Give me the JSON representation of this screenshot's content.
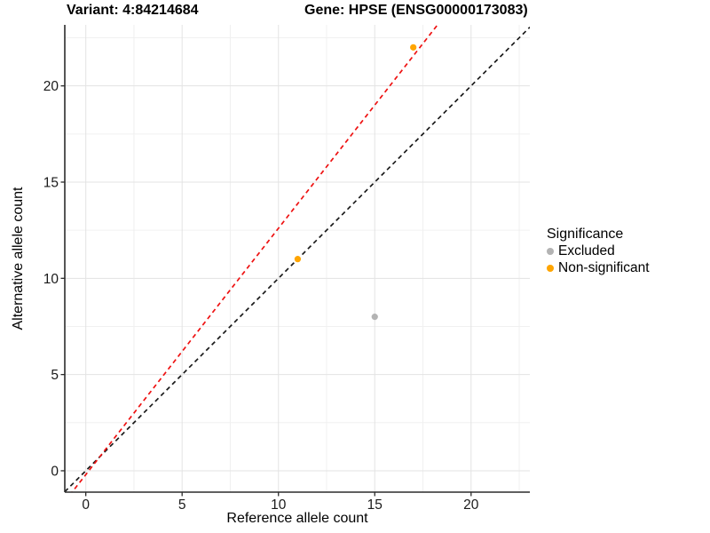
{
  "chart_data": {
    "type": "scatter",
    "titles": {
      "left": "Variant: 4:84214684",
      "right": "Gene: HPSE (ENSG00000173083)"
    },
    "xlabel": "Reference allele count",
    "ylabel": "Alternative allele count",
    "xlim": [
      -1.09,
      23.05
    ],
    "ylim": [
      -1.11,
      23.17
    ],
    "x_ticks": [
      0,
      5,
      10,
      15,
      20
    ],
    "y_ticks": [
      0,
      5,
      10,
      15,
      20
    ],
    "minor_interval": 2.5,
    "grid": "major+minor",
    "grid_major_color": "#E3E3E3",
    "grid_minor_color": "#F0F0F0",
    "axis_color": "#2B2B2B",
    "tick_label_color": "#1A1A1A",
    "series": [
      {
        "name": "Excluded",
        "color": "#B3B3B3",
        "points": [
          {
            "x": 15,
            "y": 8
          }
        ]
      },
      {
        "name": "Non-significant",
        "color": "#FFA500",
        "points": [
          {
            "x": 11,
            "y": 11
          },
          {
            "x": 17,
            "y": 22
          }
        ]
      }
    ],
    "reference_lines": [
      {
        "name": "identity",
        "slope": 1.0,
        "intercept": 0.0,
        "color": "#1A1A1A",
        "style": "dashed"
      },
      {
        "name": "allelic-ratio",
        "slope": 1.28,
        "intercept": -0.2,
        "color": "#EE1111",
        "style": "dashed"
      }
    ],
    "legend": {
      "title": "Significance",
      "position": "right",
      "items": [
        {
          "label": "Excluded",
          "color": "#B3B3B3"
        },
        {
          "label": "Non-significant",
          "color": "#FFA500"
        }
      ]
    }
  }
}
